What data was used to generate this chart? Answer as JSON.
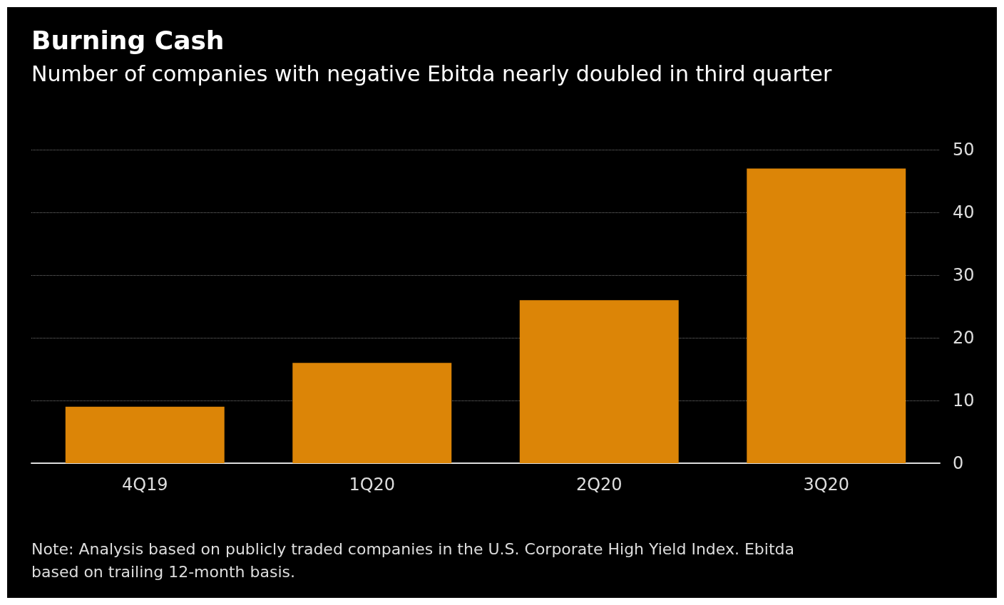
{
  "chart_data": {
    "type": "bar",
    "title": "Burning Cash",
    "subtitle": "Number of companies with negative Ebitda nearly doubled in third quarter",
    "categories": [
      "4Q19",
      "1Q20",
      "2Q20",
      "3Q20"
    ],
    "values": [
      9,
      16,
      26,
      47
    ],
    "color": "#dc8507",
    "ylim": [
      0,
      50
    ],
    "yticks": [
      0,
      10,
      20,
      30,
      40,
      50
    ],
    "grid": "y",
    "line_style": "dotted",
    "annotations": [
      "Note: Analysis based on publicly traded companies in the U.S. Corporate High Yield Index. Ebitda based on trailing 12-month basis."
    ]
  }
}
